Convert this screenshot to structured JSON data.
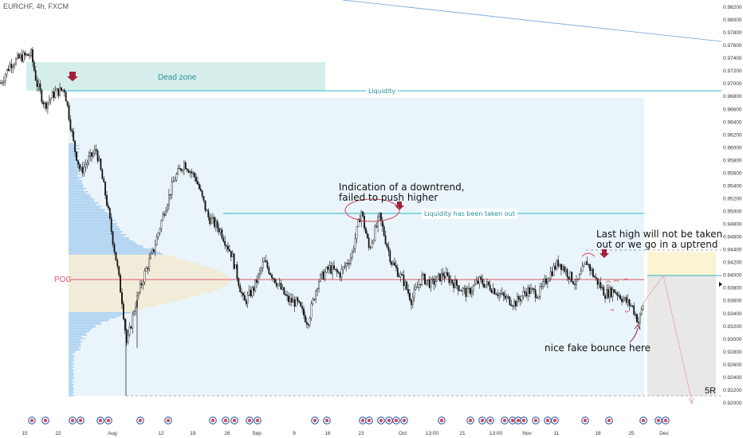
{
  "symbol_title": "EURCHF, 4h, FXCM",
  "chart_data": {
    "type": "candlestick",
    "symbol": "EURCHF",
    "timeframe": "4h",
    "source": "FXCM",
    "ylim": [
      0.92,
      0.982
    ],
    "y_ticks": [
      "0.98200",
      "0.98000",
      "0.97800",
      "0.97600",
      "0.97400",
      "0.97200",
      "0.97000",
      "0.96800",
      "0.96600",
      "0.96400",
      "0.96200",
      "0.96000",
      "0.95800",
      "0.95600",
      "0.95400",
      "0.95200",
      "0.95000",
      "0.94800",
      "0.94600",
      "0.94400",
      "0.94200",
      "0.94000",
      "0.93800",
      "0.93600",
      "0.93400",
      "0.93200",
      "0.93000",
      "0.92800",
      "0.92600",
      "0.92400",
      "0.92200",
      "0.92000"
    ],
    "x_ticks": [
      "15",
      "22",
      "Aug",
      "12",
      "19",
      "26",
      "Sep",
      "9",
      "16",
      "23",
      "Oct",
      "13:00",
      "21",
      "13:00",
      "Nov",
      "11",
      "18",
      "25",
      "Dec"
    ],
    "price_path": [
      [
        0,
        0.97
      ],
      [
        12,
        0.973
      ],
      [
        25,
        0.974
      ],
      [
        38,
        0.9745
      ],
      [
        45,
        0.97
      ],
      [
        55,
        0.9665
      ],
      [
        68,
        0.9685
      ],
      [
        80,
        0.969
      ],
      [
        92,
        0.96
      ],
      [
        100,
        0.956
      ],
      [
        110,
        0.958
      ],
      [
        120,
        0.9595
      ],
      [
        132,
        0.952
      ],
      [
        145,
        0.942
      ],
      [
        152,
        0.936
      ],
      [
        158,
        0.929
      ],
      [
        168,
        0.935
      ],
      [
        180,
        0.94
      ],
      [
        192,
        0.944
      ],
      [
        205,
        0.95
      ],
      [
        218,
        0.955
      ],
      [
        230,
        0.9575
      ],
      [
        245,
        0.955
      ],
      [
        260,
        0.949
      ],
      [
        275,
        0.947
      ],
      [
        290,
        0.943
      ],
      [
        298,
        0.939
      ],
      [
        305,
        0.9355
      ],
      [
        318,
        0.938
      ],
      [
        330,
        0.942
      ],
      [
        345,
        0.939
      ],
      [
        360,
        0.936
      ],
      [
        372,
        0.9355
      ],
      [
        385,
        0.9325
      ],
      [
        398,
        0.939
      ],
      [
        412,
        0.941
      ],
      [
        425,
        0.94
      ],
      [
        440,
        0.943
      ],
      [
        452,
        0.95
      ],
      [
        462,
        0.944
      ],
      [
        475,
        0.949
      ],
      [
        490,
        0.942
      ],
      [
        505,
        0.939
      ],
      [
        515,
        0.936
      ],
      [
        528,
        0.9395
      ],
      [
        540,
        0.9385
      ],
      [
        555,
        0.94
      ],
      [
        570,
        0.9385
      ],
      [
        585,
        0.937
      ],
      [
        600,
        0.939
      ],
      [
        615,
        0.938
      ],
      [
        630,
        0.9365
      ],
      [
        645,
        0.9355
      ],
      [
        660,
        0.9375
      ],
      [
        675,
        0.937
      ],
      [
        688,
        0.94
      ],
      [
        700,
        0.942
      ],
      [
        712,
        0.94
      ],
      [
        722,
        0.9385
      ],
      [
        735,
        0.942
      ],
      [
        745,
        0.9395
      ],
      [
        758,
        0.937
      ],
      [
        770,
        0.9375
      ],
      [
        782,
        0.936
      ],
      [
        792,
        0.935
      ],
      [
        800,
        0.9325
      ],
      [
        806,
        0.9355
      ]
    ],
    "levels": [
      {
        "label": "Liquidity",
        "price": 0.9691,
        "color": "#2bb5c4"
      },
      {
        "label": "Liquidity has been taken out",
        "price": 0.95,
        "color": "#2bb5c4"
      },
      {
        "label": "POC",
        "price": 0.9395,
        "color": "#e0566a"
      },
      {
        "label": "",
        "price": 0.9437,
        "color": "#888888"
      }
    ]
  },
  "annotations": {
    "dead_zone": "Dead zone",
    "liquidity": "Liquidity",
    "liquidity_taken": "Liquidity has been taken out",
    "downtrend_note": "Indication of a downtrend,\nfailed to push higher",
    "last_high_note": "Last high will not be taken\nout or we go in a uptrend",
    "fake_bounce": "nice fake bounce here",
    "poc": "POC",
    "sr": "5R"
  },
  "colors": {
    "candle": "#111111",
    "dead_zone_fill": "#d5eeec",
    "dead_zone_text": "#2a8f9a",
    "range_fill": "#eaf5fb",
    "volume_profile": "#a9cff0",
    "value_area": "#f3ead0",
    "poc": "#e0566a",
    "liquidity": "#2bb5c4",
    "arrow": "#a3203c",
    "yellow_zone": "#fbf4d2",
    "grey_zone": "#e8e8e8",
    "trendline": "#6fa0d8",
    "event_icon": "#2f5da8"
  }
}
